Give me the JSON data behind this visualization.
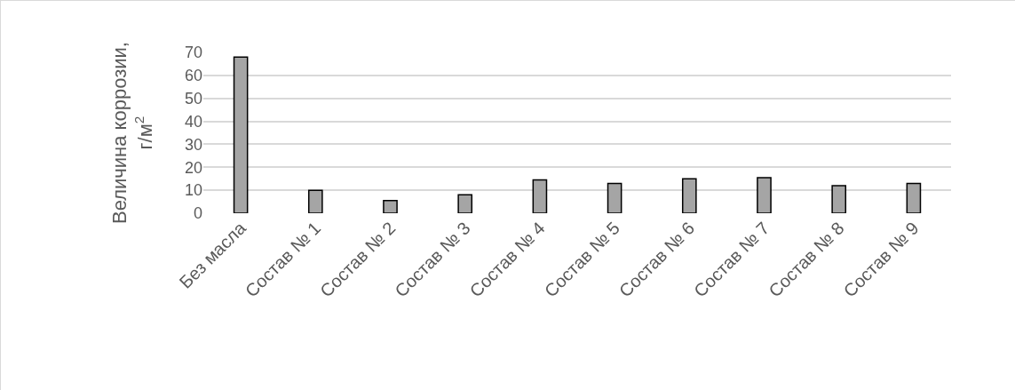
{
  "chart_data": {
    "type": "bar",
    "ylabel": "Величина коррозии, г/м$^{2}$",
    "categories": [
      "Без масла",
      "Состав № 1",
      "Состав № 2",
      "Состав № 3",
      "Состав № 4",
      "Состав № 5",
      "Состав № 6",
      "Состав № 7",
      "Состав № 8",
      "Состав № 9"
    ],
    "values": [
      68,
      10,
      5.5,
      8,
      14.5,
      13,
      15,
      15.5,
      12,
      13
    ],
    "color": "#a5a5a5",
    "ylim": [
      0,
      70
    ],
    "yticks": [
      0,
      10,
      20,
      30,
      40,
      50,
      60,
      70
    ],
    "grid": "y"
  }
}
